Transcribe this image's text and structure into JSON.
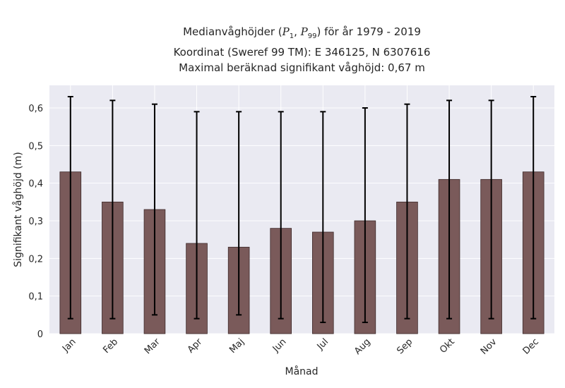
{
  "title": {
    "line1_prefix": "Medianvåghöjder (",
    "p_low": "P",
    "p_low_sub": "1",
    "comma": ", ",
    "p_high": "P",
    "p_high_sub": "99",
    "line1_suffix": ") för år 1979 - 2019",
    "line2": "Koordinat (Sweref 99 TM): E 346125, N 6307616",
    "line3": "Maximal beräknad signifikant våghöjd: 0,67 m"
  },
  "chart_data": {
    "type": "bar",
    "categories": [
      "Jan",
      "Feb",
      "Mar",
      "Apr",
      "Maj",
      "Jun",
      "Jul",
      "Aug",
      "Sep",
      "Okt",
      "Nov",
      "Dec"
    ],
    "values": [
      0.43,
      0.35,
      0.33,
      0.24,
      0.23,
      0.28,
      0.27,
      0.3,
      0.35,
      0.41,
      0.41,
      0.43
    ],
    "p1": [
      0.04,
      0.04,
      0.05,
      0.04,
      0.05,
      0.04,
      0.03,
      0.03,
      0.04,
      0.04,
      0.04,
      0.04
    ],
    "p99": [
      0.63,
      0.62,
      0.61,
      0.59,
      0.59,
      0.59,
      0.59,
      0.6,
      0.61,
      0.62,
      0.62,
      0.63
    ],
    "xlabel": "Månad",
    "ylabel": "Signifikant våghöjd (m)",
    "ylim": [
      0,
      0.66
    ],
    "yticks": [
      0,
      0.1,
      0.2,
      0.3,
      0.4,
      0.5,
      0.6
    ],
    "ytick_labels": [
      "0",
      "0,1",
      "0,2",
      "0,3",
      "0,4",
      "0,5",
      "0,6"
    ],
    "grid": true,
    "colors": {
      "bar": "#7a5a5a",
      "bar_edge": "#3d2a2a",
      "error_bar": "#000000",
      "plot_bg": "#eaeaf2",
      "grid": "#ffffff"
    }
  }
}
